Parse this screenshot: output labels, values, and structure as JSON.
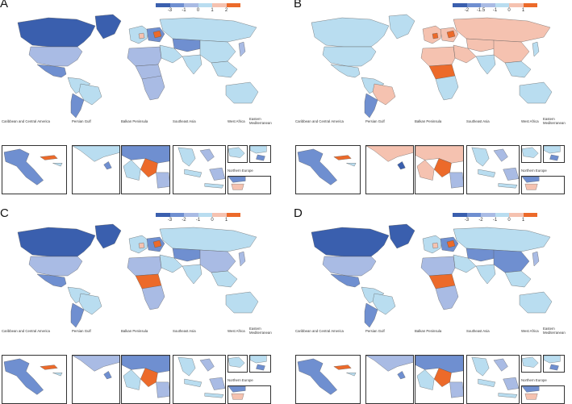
{
  "colors": {
    "dark_blue": "#3a5fae",
    "mid_blue": "#6f8fd0",
    "light_blue": "#a9bbe4",
    "pale_blue": "#b9ddf0",
    "peach": "#f5c2b0",
    "orange": "#ec6a2a",
    "border": "#555555"
  },
  "inset_titles": {
    "caribbean": "Caribbean and Central America",
    "persian": "Persian Gulf",
    "balkan": "Balkan Peninsula",
    "seasia": "Southeast Asia",
    "westafrica": "West Africa",
    "eastmed": "Eastern Mediterranean",
    "northeurope": "Northern Europe"
  },
  "panels": [
    {
      "letter": "A",
      "legend_ticks": [
        "-3",
        "-1",
        "0",
        "1",
        "2"
      ],
      "legend_colors": [
        "dark_blue",
        "mid_blue",
        "light_blue",
        "pale_blue",
        "peach",
        "orange"
      ],
      "regions": {
        "na_north": "dark_blue",
        "greenland": "dark_blue",
        "usa": "light_blue",
        "mexico": "mid_blue",
        "south_america": "pale_blue",
        "brazil": "pale_blue",
        "argentina": "mid_blue",
        "west_europe": "pale_blue",
        "east_europe": "mid_blue",
        "russia": "pale_blue",
        "central_asia": "mid_blue",
        "china": "pale_blue",
        "india": "pale_blue",
        "middle_east": "pale_blue",
        "africa_north": "light_blue",
        "africa_central": "light_blue",
        "africa_south": "light_blue",
        "se_asia": "pale_blue",
        "australia": "pale_blue",
        "japan": "light_blue",
        "hotspot": "orange",
        "hotspot2": "peach"
      }
    },
    {
      "letter": "B",
      "legend_ticks": [
        "-2",
        "-1.5",
        "-1",
        "0",
        "1"
      ],
      "legend_colors": [
        "dark_blue",
        "mid_blue",
        "light_blue",
        "pale_blue",
        "peach",
        "orange"
      ],
      "regions": {
        "na_north": "pale_blue",
        "greenland": "pale_blue",
        "usa": "pale_blue",
        "mexico": "pale_blue",
        "south_america": "pale_blue",
        "brazil": "peach",
        "argentina": "mid_blue",
        "west_europe": "peach",
        "east_europe": "peach",
        "russia": "peach",
        "central_asia": "peach",
        "china": "peach",
        "india": "pale_blue",
        "middle_east": "peach",
        "africa_north": "peach",
        "africa_central": "orange",
        "africa_south": "pale_blue",
        "se_asia": "pale_blue",
        "australia": "pale_blue",
        "japan": "pale_blue",
        "hotspot": "orange",
        "hotspot2": "orange"
      }
    },
    {
      "letter": "C",
      "legend_ticks": [
        "-3",
        "-2",
        "-1",
        "0",
        "1"
      ],
      "legend_colors": [
        "dark_blue",
        "mid_blue",
        "light_blue",
        "pale_blue",
        "peach",
        "orange"
      ],
      "regions": {
        "na_north": "dark_blue",
        "greenland": "dark_blue",
        "usa": "light_blue",
        "mexico": "mid_blue",
        "south_america": "pale_blue",
        "brazil": "pale_blue",
        "argentina": "mid_blue",
        "west_europe": "pale_blue",
        "east_europe": "mid_blue",
        "russia": "pale_blue",
        "central_asia": "mid_blue",
        "china": "light_blue",
        "india": "pale_blue",
        "middle_east": "pale_blue",
        "africa_north": "light_blue",
        "africa_central": "orange",
        "africa_south": "light_blue",
        "se_asia": "pale_blue",
        "australia": "pale_blue",
        "japan": "light_blue",
        "hotspot": "orange",
        "hotspot2": "peach"
      }
    },
    {
      "letter": "D",
      "legend_ticks": [
        "-3",
        "-2",
        "-1",
        "0",
        "1"
      ],
      "legend_colors": [
        "dark_blue",
        "mid_blue",
        "light_blue",
        "pale_blue",
        "peach",
        "orange"
      ],
      "regions": {
        "na_north": "dark_blue",
        "greenland": "dark_blue",
        "usa": "light_blue",
        "mexico": "mid_blue",
        "south_america": "pale_blue",
        "brazil": "pale_blue",
        "argentina": "mid_blue",
        "west_europe": "pale_blue",
        "east_europe": "mid_blue",
        "russia": "pale_blue",
        "central_asia": "mid_blue",
        "china": "mid_blue",
        "india": "pale_blue",
        "middle_east": "pale_blue",
        "africa_north": "light_blue",
        "africa_central": "orange",
        "africa_south": "light_blue",
        "se_asia": "pale_blue",
        "australia": "pale_blue",
        "japan": "light_blue",
        "hotspot": "orange",
        "hotspot2": "peach"
      }
    }
  ]
}
